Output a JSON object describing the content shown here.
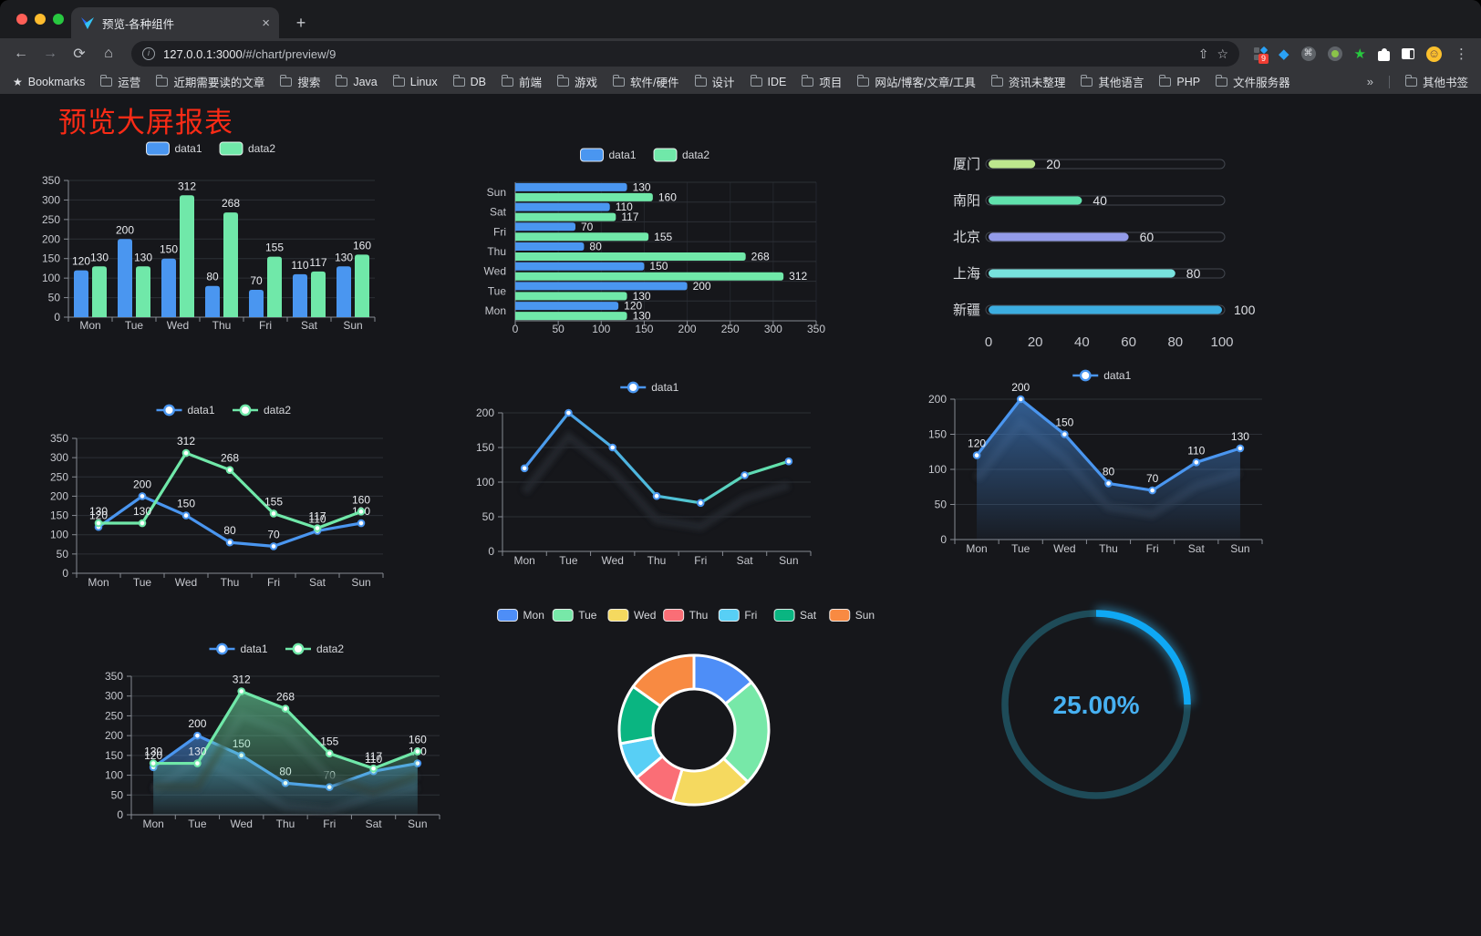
{
  "browser": {
    "tab_title": "预览-各种组件",
    "tab_close": "×",
    "new_tab": "+",
    "nav": {
      "back": "←",
      "forward": "→",
      "reload": "⟳",
      "home": "⌂"
    },
    "url": {
      "host": "127.0.0.1:3000",
      "path": "/#/chart/preview/9"
    },
    "omnibox_icons": {
      "share": "⇧",
      "star": "☆"
    },
    "extension_badge": "9",
    "bookmarks": {
      "star_icon": "★",
      "label": "Bookmarks",
      "items": [
        "运营",
        "近期需要读的文章",
        "搜索",
        "Java",
        "Linux",
        "DB",
        "前端",
        "游戏",
        "软件/硬件",
        "设计",
        "IDE",
        "项目",
        "网站/博客/文章/工具",
        "资讯未整理",
        "其他语言",
        "PHP",
        "文件服务器"
      ],
      "overflow": "»",
      "other_bookmarks": "其他书签"
    }
  },
  "page": {
    "title": "预览大屏报表",
    "title_color": "#fa2b16"
  },
  "chart_data": [
    {
      "id": "bar-vertical",
      "type": "bar",
      "categories": [
        "Mon",
        "Tue",
        "Wed",
        "Thu",
        "Fri",
        "Sat",
        "Sun"
      ],
      "series": [
        {
          "name": "data1",
          "color": "#4a96f0",
          "values": [
            120,
            200,
            150,
            80,
            70,
            110,
            130
          ]
        },
        {
          "name": "data2",
          "color": "#70e8a9",
          "values": [
            130,
            130,
            312,
            268,
            155,
            117,
            160
          ]
        }
      ],
      "ylim": [
        0,
        350
      ],
      "ystep": 50,
      "value_labels": true,
      "legend_icon": "roundRect",
      "grid": true
    },
    {
      "id": "bar-horizontal",
      "type": "hbar",
      "categories": [
        "Mon",
        "Tue",
        "Wed",
        "Thu",
        "Fri",
        "Sat",
        "Sun"
      ],
      "series": [
        {
          "name": "data1",
          "color": "#4a96f0",
          "values": [
            120,
            200,
            150,
            80,
            70,
            110,
            130
          ]
        },
        {
          "name": "data2",
          "color": "#70e8a9",
          "values": [
            130,
            130,
            312,
            268,
            155,
            117,
            160
          ]
        }
      ],
      "xlim": [
        0,
        350
      ],
      "xstep": 50,
      "value_labels": true,
      "legend_icon": "roundRect",
      "grid": true
    },
    {
      "id": "progress-bars",
      "type": "progress",
      "categories": [
        "厦门",
        "南阳",
        "北京",
        "上海",
        "新疆"
      ],
      "values": [
        20,
        40,
        60,
        80,
        100
      ],
      "colors": [
        "#bde78d",
        "#60e2ad",
        "#939be8",
        "#78e3de",
        "#3cade0"
      ],
      "xlim": [
        0,
        100
      ],
      "xstep": 20
    },
    {
      "id": "line-two-series",
      "type": "line",
      "categories": [
        "Mon",
        "Tue",
        "Wed",
        "Thu",
        "Fri",
        "Sat",
        "Sun"
      ],
      "series": [
        {
          "name": "data1",
          "color": "#4a96f0",
          "values": [
            120,
            200,
            150,
            80,
            70,
            110,
            130
          ]
        },
        {
          "name": "data2",
          "color": "#70e8a9",
          "values": [
            130,
            130,
            312,
            268,
            155,
            117,
            160
          ]
        }
      ],
      "ylim": [
        0,
        350
      ],
      "ystep": 50,
      "value_labels": true,
      "markers": true,
      "grid": true
    },
    {
      "id": "line-gradient",
      "type": "line",
      "categories": [
        "Mon",
        "Tue",
        "Wed",
        "Thu",
        "Fri",
        "Sat",
        "Sun"
      ],
      "series": [
        {
          "name": "data1",
          "color": "#4a96f0",
          "gradient_to": "#65e5a5",
          "values": [
            120,
            200,
            150,
            80,
            70,
            110,
            130
          ]
        }
      ],
      "ylim": [
        0,
        200
      ],
      "ystep": 50,
      "value_labels": false,
      "markers": true,
      "shadow": true,
      "grid": true
    },
    {
      "id": "area-single",
      "type": "line",
      "area": true,
      "categories": [
        "Mon",
        "Tue",
        "Wed",
        "Thu",
        "Fri",
        "Sat",
        "Sun"
      ],
      "series": [
        {
          "name": "data1",
          "color": "#4a96f0",
          "values": [
            120,
            200,
            150,
            80,
            70,
            110,
            130
          ]
        }
      ],
      "ylim": [
        0,
        200
      ],
      "ystep": 50,
      "value_labels": true,
      "markers": true,
      "shadow": true,
      "grid": true
    },
    {
      "id": "area-two-series",
      "type": "line",
      "area": true,
      "categories": [
        "Mon",
        "Tue",
        "Wed",
        "Thu",
        "Fri",
        "Sat",
        "Sun"
      ],
      "series": [
        {
          "name": "data1",
          "color": "#4a96f0",
          "values": [
            120,
            200,
            150,
            80,
            70,
            110,
            130
          ]
        },
        {
          "name": "data2",
          "color": "#70e8a9",
          "values": [
            130,
            130,
            312,
            268,
            155,
            117,
            160
          ]
        }
      ],
      "ylim": [
        0,
        350
      ],
      "ystep": 50,
      "value_labels": true,
      "markers": true,
      "shadow": true,
      "grid": true
    },
    {
      "id": "donut",
      "type": "pie",
      "categories": [
        "Mon",
        "Tue",
        "Wed",
        "Thu",
        "Fri",
        "Sat",
        "Sun"
      ],
      "values": [
        120,
        200,
        150,
        80,
        70,
        110,
        130
      ],
      "colors": [
        "#4e8ef7",
        "#77e8a8",
        "#f5d95f",
        "#fa6e76",
        "#58cff5",
        "#0ab581",
        "#f88a42"
      ]
    },
    {
      "id": "gauge",
      "type": "gauge",
      "value": 25,
      "max": 100,
      "label": "25.00%",
      "arc_color": "#0fa8f4",
      "track_color": "#1e4b58",
      "text_color": "#47b1f2"
    }
  ]
}
